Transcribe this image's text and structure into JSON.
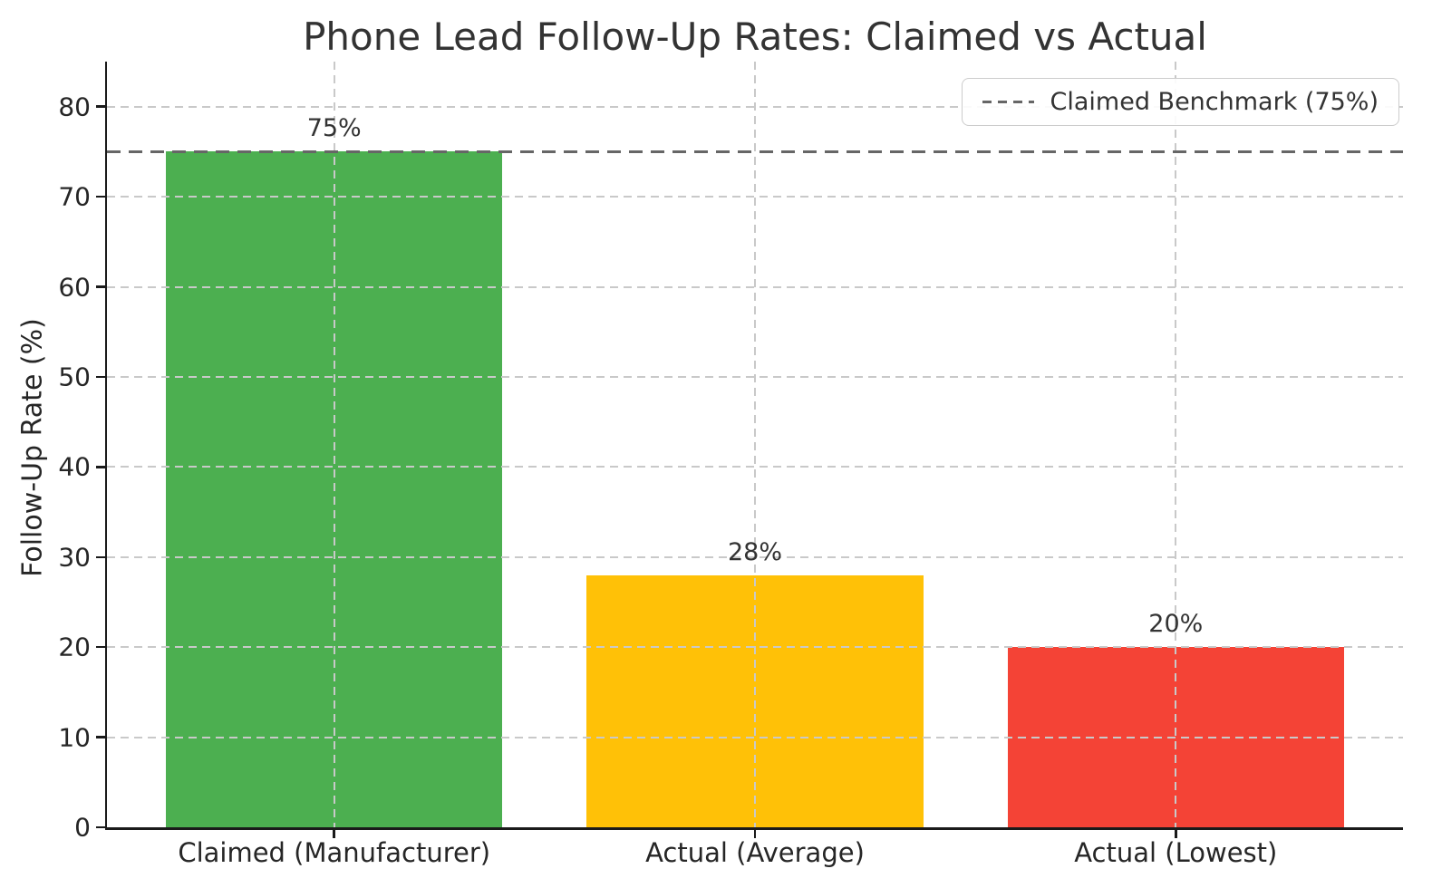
{
  "chart_data": {
    "type": "bar",
    "title": "Phone Lead Follow-Up Rates: Claimed vs Actual",
    "ylabel": "Follow-Up Rate (%)",
    "xlabel": "",
    "categories": [
      "Claimed (Manufacturer)",
      "Actual (Average)",
      "Actual (Lowest)"
    ],
    "values": [
      75,
      28,
      20
    ],
    "value_labels": [
      "75%",
      "28%",
      "20%"
    ],
    "bar_colors": [
      "#4caf50",
      "#ffc107",
      "#f44336"
    ],
    "ylim": [
      0,
      85
    ],
    "yticks": [
      0,
      10,
      20,
      30,
      40,
      50,
      60,
      70,
      80
    ],
    "grid": true,
    "grid_style": "dashed",
    "grid_color": "#c9c9c9",
    "benchmark": {
      "value": 75,
      "label": "Claimed Benchmark (75%)",
      "color": "#666666",
      "line_style": "dashed"
    },
    "legend": {
      "position": "upper right",
      "entries": [
        {
          "label": "Claimed Benchmark (75%)",
          "line_style": "dashed",
          "color": "#666666"
        }
      ]
    }
  }
}
